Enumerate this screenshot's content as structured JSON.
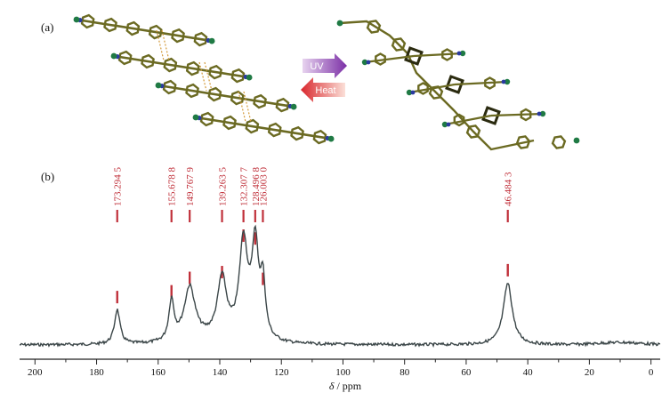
{
  "panel_a_label": "(a)",
  "panel_b_label": "(b)",
  "reaction": {
    "forward_label": "UV",
    "reverse_label": "Heat",
    "forward_color": "#8a3fb0",
    "reverse_color": "#d9262c"
  },
  "colors": {
    "spectrum": "#3b4648",
    "peak_marker": "#c0303a",
    "peak_label": "#c0303a",
    "molecule_bond": "#6b6a22",
    "nitrogen": "#2a3aa0",
    "terminal_atom": "#1f7a44",
    "dimer_ring": "#2b2b10"
  },
  "chart_data": {
    "type": "line",
    "title": "",
    "xlabel_italic": "δ",
    "xlabel_rest": " / ppm",
    "ylabel": "",
    "xlim": [
      205,
      -3
    ],
    "x_reversed": true,
    "x_ticks": [
      200,
      180,
      160,
      140,
      120,
      100,
      80,
      60,
      40,
      20,
      0
    ],
    "grid": false,
    "peaks": [
      {
        "shift": 173.2945,
        "label": "173.294 5",
        "height": 0.36
      },
      {
        "shift": 155.6788,
        "label": "155.678 8",
        "height": 0.42
      },
      {
        "shift": 149.7679,
        "label": "149.767 9",
        "height": 0.56
      },
      {
        "shift": 139.2635,
        "label": "139.263 5",
        "height": 0.62
      },
      {
        "shift": 132.3077,
        "label": "132.307 7",
        "height": 1.0
      },
      {
        "shift": 128.4968,
        "label": "128.496 8",
        "height": 0.97
      },
      {
        "shift": 126.003,
        "label": "126.003 0",
        "height": 0.55
      },
      {
        "shift": 46.4843,
        "label": "46.484 3",
        "height": 0.64
      }
    ]
  }
}
